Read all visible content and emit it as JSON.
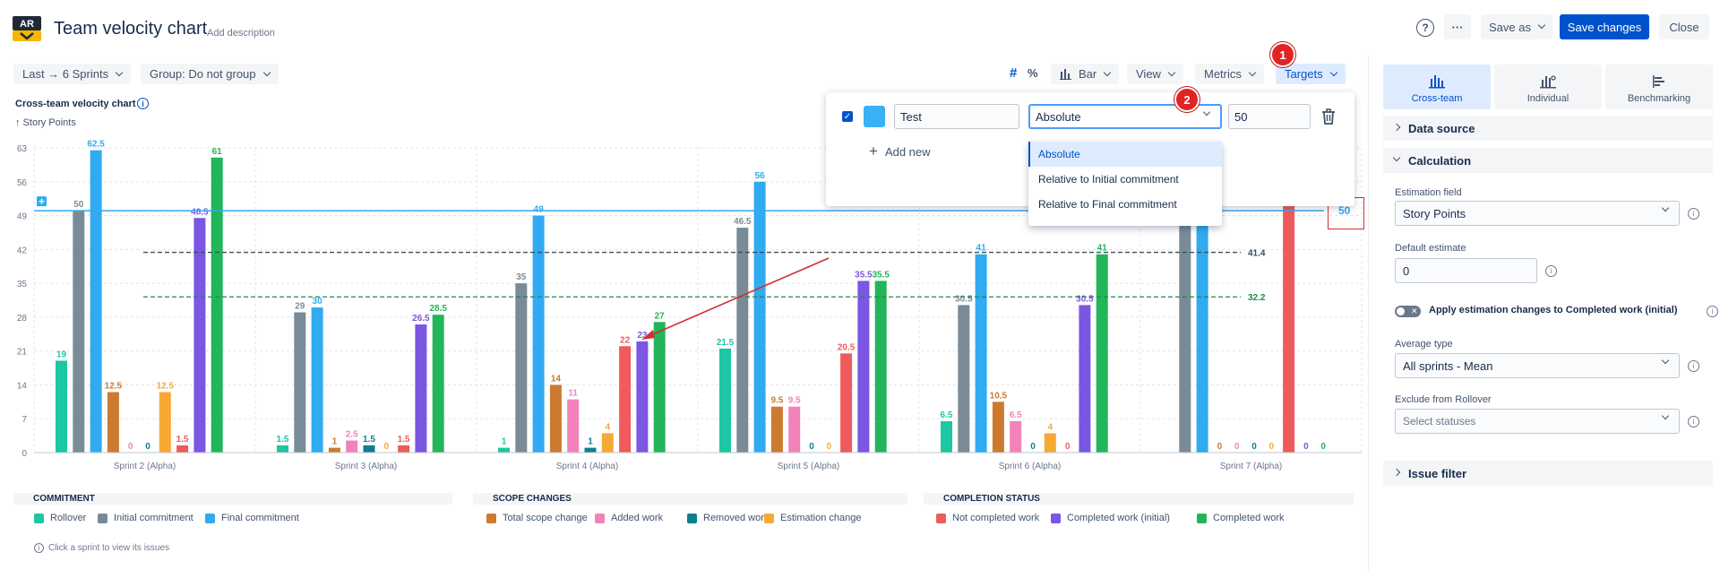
{
  "header": {
    "logo_text": "AR",
    "title": "Team velocity chart",
    "add_description": "Add description",
    "help_icon": "?",
    "more_icon": "···",
    "save_as": "Save as",
    "save_changes": "Save changes",
    "close": "Close"
  },
  "toolbar": {
    "last": "Last → 6 Sprints",
    "group": "Group: Do not group",
    "hash_icon": "#",
    "percent_icon": "%",
    "bar": "Bar",
    "view": "View",
    "metrics": "Metrics",
    "targets": "Targets"
  },
  "badges": {
    "b1": "1",
    "b2": "2"
  },
  "chart_header": {
    "title": "Cross-team velocity chart",
    "unit": "↑ Story Points",
    "info_icon": "i"
  },
  "chart_data": {
    "type": "bar",
    "title": "Cross-team velocity chart",
    "ylabel": "Story Points",
    "yticks": [
      0,
      7,
      14,
      21,
      28,
      35,
      42,
      49,
      56,
      63
    ],
    "ylim": [
      0,
      63
    ],
    "categories": [
      "Sprint 2 (Alpha)",
      "Sprint 3 (Alpha)",
      "Sprint 4 (Alpha)",
      "Sprint 5 (Alpha)",
      "Sprint 6 (Alpha)",
      "Sprint 7 (Alpha)"
    ],
    "series": [
      {
        "name": "Rollover",
        "color": "#1cc7a3",
        "values": [
          19,
          1.5,
          1,
          21.5,
          6.5,
          0
        ]
      },
      {
        "name": "Initial commitment",
        "color": "#7a8b98",
        "values": [
          50,
          29,
          35,
          46.5,
          30.5,
          49
        ]
      },
      {
        "name": "Final commitment",
        "color": "#30aaf0",
        "values": [
          62.5,
          30,
          49,
          56,
          41,
          49
        ]
      },
      {
        "name": "Total scope change",
        "color": "#cc7a30",
        "values": [
          12.5,
          1,
          14,
          9.5,
          10.5,
          0
        ]
      },
      {
        "name": "Added work",
        "color": "#f283b9",
        "values": [
          0,
          2.5,
          11,
          9.5,
          6.5,
          0
        ]
      },
      {
        "name": "Removed work",
        "color": "#0e7f8f",
        "values": [
          0,
          1.5,
          1,
          0,
          0,
          0
        ]
      },
      {
        "name": "Estimation change",
        "color": "#f7a934",
        "values": [
          12.5,
          0,
          4,
          0,
          4,
          0
        ]
      },
      {
        "name": "Not completed work",
        "color": "#ef5b5b",
        "values": [
          1.5,
          1.5,
          22,
          20.5,
          0,
          58
        ]
      },
      {
        "name": "Completed work (initial)",
        "color": "#7a56e3",
        "values": [
          48.5,
          26.5,
          23,
          35.5,
          30.5,
          0
        ]
      },
      {
        "name": "Completed work",
        "color": "#23b55a",
        "values": [
          61,
          28.5,
          27,
          35.5,
          41,
          0
        ]
      }
    ],
    "hidden_labels": [
      [
        5,
        0
      ],
      [
        5,
        1
      ],
      [
        5,
        2
      ],
      [
        5,
        7
      ]
    ],
    "reference_lines": [
      {
        "value": 50,
        "label": "50",
        "color": "#30aaf0",
        "style": "solid"
      },
      {
        "value": 41.4,
        "label": "41.4",
        "color": "#3d4f5c",
        "style": "dashed"
      },
      {
        "value": 32.2,
        "label": "32.2",
        "color": "#1b8a4a",
        "style": "dashed"
      }
    ]
  },
  "legend": {
    "groups": [
      {
        "title": "COMMITMENT",
        "items": [
          "Rollover",
          "Initial commitment",
          "Final commitment"
        ]
      },
      {
        "title": "SCOPE CHANGES",
        "items": [
          "Total scope change",
          "Added work",
          "Removed work",
          "Estimation change"
        ]
      },
      {
        "title": "COMPLETION STATUS",
        "items": [
          "Not completed work",
          "Completed work (initial)",
          "Completed work"
        ]
      }
    ],
    "hint": "Click a sprint to view its issues",
    "hint_icon": "i"
  },
  "target_popup": {
    "checkbox": "✓",
    "name_value": "Test",
    "type_value": "Absolute",
    "value": "50",
    "add_new": "Add new",
    "add_icon": "+",
    "options": [
      "Absolute",
      "Relative to Initial commitment",
      "Relative to Final commitment"
    ]
  },
  "sidebar": {
    "tabs": [
      "Cross-team",
      "Individual",
      "Benchmarking"
    ],
    "sections": {
      "data_source": "Data source",
      "calculation": "Calculation",
      "issue_filter": "Issue filter"
    },
    "estimation_field_label": "Estimation field",
    "estimation_field_value": "Story Points",
    "default_estimate_label": "Default estimate",
    "default_estimate_value": "0",
    "toggle_label": "Apply estimation changes to Completed work (initial)",
    "toggle_x": "✕",
    "average_type_label": "Average type",
    "average_type_value": "All sprints - Mean",
    "exclude_label": "Exclude from Rollover",
    "exclude_placeholder": "Select statuses",
    "info_icon": "i"
  }
}
